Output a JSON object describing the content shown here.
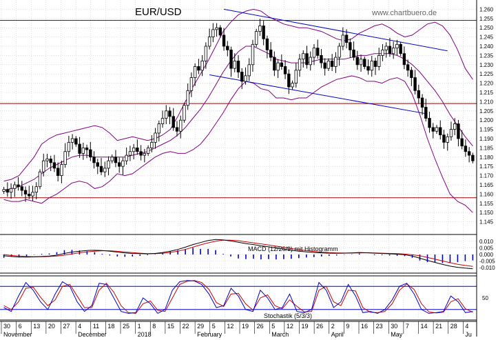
{
  "chart_data": {
    "type": "candlestick",
    "title": "EUR/USD",
    "watermark": "www.chartbuero.de",
    "colors": {
      "candle": "#000000",
      "bollinger": "#800080",
      "trend": "#0000cc",
      "resistance": "#990000",
      "macd": "#000000",
      "signal": "#cc0000",
      "histogram": "#0000cc",
      "stoch_k": "#0000cc",
      "stoch_d": "#cc0000",
      "grid": "#c0c0c0"
    },
    "price_axis": {
      "min": 1.14,
      "max": 1.265,
      "ticks": [
        "1.145",
        "1.150",
        "1.155",
        "1.160",
        "1.165",
        "1.170",
        "1.175",
        "1.180",
        "1.185",
        "1.190",
        "1.195",
        "1.200",
        "1.205",
        "1.210",
        "1.215",
        "1.220",
        "1.225",
        "1.230",
        "1.235",
        "1.240",
        "1.245",
        "1.250",
        "1.255",
        "1.260"
      ]
    },
    "horizontal_lines": [
      1.254,
      1.209,
      1.158
    ],
    "trend_channel": [
      {
        "from": {
          "i": 61,
          "v": 1.26
        },
        "to": {
          "i": 123,
          "v": 1.2375
        }
      },
      {
        "from": {
          "i": 57,
          "v": 1.2245
        },
        "to": {
          "i": 117,
          "v": 1.2035
        }
      }
    ],
    "start_index": 0,
    "ohlc": {
      "close": [
        1.1625,
        1.161,
        1.163,
        1.165,
        1.164,
        1.162,
        1.16,
        1.159,
        1.161,
        1.164,
        1.172,
        1.178,
        1.179,
        1.177,
        1.174,
        1.17,
        1.176,
        1.183,
        1.188,
        1.19,
        1.187,
        1.182,
        1.185,
        1.184,
        1.18,
        1.177,
        1.175,
        1.172,
        1.174,
        1.178,
        1.18,
        1.177,
        1.175,
        1.178,
        1.181,
        1.183,
        1.185,
        1.183,
        1.181,
        1.182,
        1.185,
        1.188,
        1.193,
        1.198,
        1.201,
        1.205,
        1.202,
        1.196,
        1.194,
        1.2,
        1.208,
        1.216,
        1.223,
        1.229,
        1.227,
        1.232,
        1.24,
        1.245,
        1.249,
        1.25,
        1.246,
        1.24,
        1.238,
        1.228,
        1.232,
        1.226,
        1.221,
        1.224,
        1.23,
        1.241,
        1.248,
        1.251,
        1.244,
        1.238,
        1.234,
        1.227,
        1.231,
        1.229,
        1.225,
        1.218,
        1.22,
        1.227,
        1.233,
        1.236,
        1.23,
        1.234,
        1.239,
        1.235,
        1.231,
        1.228,
        1.232,
        1.229,
        1.234,
        1.24,
        1.246,
        1.242,
        1.238,
        1.234,
        1.23,
        1.233,
        1.229,
        1.227,
        1.232,
        1.229,
        1.235,
        1.238,
        1.24,
        1.236,
        1.239,
        1.241,
        1.236,
        1.23,
        1.227,
        1.223,
        1.216,
        1.212,
        1.207,
        1.201,
        1.196,
        1.194,
        1.196,
        1.192,
        1.188,
        1.191,
        1.195,
        1.198,
        1.19,
        1.186,
        1.183,
        1.181,
        1.178
      ],
      "high_offset": 0.0035,
      "low_offset": 0.0035
    },
    "bollinger": {
      "upper": [
        1.167,
        1.168,
        1.17,
        1.175,
        1.18,
        1.187,
        1.19,
        1.192,
        1.193,
        1.194,
        1.195,
        1.196,
        1.197,
        1.196,
        1.193,
        1.189,
        1.19,
        1.191,
        1.19,
        1.189,
        1.19,
        1.192,
        1.195,
        1.202,
        1.21,
        1.218,
        1.225,
        1.232,
        1.24,
        1.248,
        1.253,
        1.257,
        1.259,
        1.26,
        1.259,
        1.256,
        1.254,
        1.252,
        1.251,
        1.25,
        1.25,
        1.249,
        1.248,
        1.246,
        1.244,
        1.243,
        1.244,
        1.247,
        1.249,
        1.251,
        1.252,
        1.25,
        1.247,
        1.245,
        1.246,
        1.249,
        1.252,
        1.253,
        1.251,
        1.246,
        1.238,
        1.228,
        1.222
      ],
      "middle": [
        1.162,
        1.163,
        1.164,
        1.166,
        1.168,
        1.171,
        1.174,
        1.176,
        1.178,
        1.18,
        1.181,
        1.181,
        1.18,
        1.18,
        1.18,
        1.18,
        1.18,
        1.181,
        1.182,
        1.183,
        1.185,
        1.187,
        1.189,
        1.192,
        1.196,
        1.201,
        1.206,
        1.212,
        1.219,
        1.226,
        1.232,
        1.237,
        1.24,
        1.24,
        1.238,
        1.236,
        1.233,
        1.232,
        1.231,
        1.231,
        1.231,
        1.232,
        1.233,
        1.233,
        1.233,
        1.233,
        1.234,
        1.235,
        1.235,
        1.236,
        1.236,
        1.236,
        1.235,
        1.233,
        1.23,
        1.226,
        1.221,
        1.216,
        1.21,
        1.203,
        1.197,
        1.191,
        1.186
      ],
      "lower": [
        1.157,
        1.156,
        1.156,
        1.157,
        1.156,
        1.155,
        1.158,
        1.16,
        1.163,
        1.166,
        1.167,
        1.166,
        1.163,
        1.164,
        1.167,
        1.171,
        1.17,
        1.171,
        1.174,
        1.177,
        1.18,
        1.182,
        1.183,
        1.182,
        1.182,
        1.184,
        1.187,
        1.192,
        1.198,
        1.204,
        1.211,
        1.217,
        1.221,
        1.22,
        1.217,
        1.216,
        1.212,
        1.212,
        1.211,
        1.212,
        1.212,
        1.215,
        1.218,
        1.22,
        1.222,
        1.223,
        1.224,
        1.223,
        1.221,
        1.221,
        1.22,
        1.222,
        1.223,
        1.221,
        1.214,
        1.203,
        1.19,
        1.179,
        1.169,
        1.16,
        1.156,
        1.154,
        1.15
      ]
    },
    "macd": {
      "label": "MACD (12/26/9) mit Histogramm",
      "ticks": [
        "0.010",
        "0.005",
        "0.000",
        "-0.005",
        "-0.010"
      ],
      "range": [
        -0.0125,
        0.0125
      ],
      "macd": [
        -0.001,
        -0.0015,
        -0.002,
        -0.002,
        -0.0018,
        -0.0015,
        -0.0012,
        -0.0005,
        0.0008,
        0.0018,
        0.0025,
        0.003,
        0.0032,
        0.003,
        0.0025,
        0.0018,
        0.0012,
        0.0008,
        0.0006,
        0.0005,
        0.0008,
        0.0015,
        0.0025,
        0.0038,
        0.0055,
        0.0075,
        0.009,
        0.0105,
        0.0113,
        0.011,
        0.0102,
        0.0092,
        0.0082,
        0.0075,
        0.0065,
        0.0058,
        0.0048,
        0.004,
        0.0032,
        0.0025,
        0.002,
        0.0015,
        0.0012,
        0.001,
        0.0009,
        0.001,
        0.0012,
        0.0015,
        0.0013,
        0.001,
        0.0008,
        0.0005,
        0.0002,
        -0.0002,
        -0.0012,
        -0.0028,
        -0.0045,
        -0.006,
        -0.0075,
        -0.0088,
        -0.0097,
        -0.0103,
        -0.0108
      ],
      "signal": [
        0.0,
        -0.0008,
        -0.0012,
        -0.0015,
        -0.0017,
        -0.0017,
        -0.0015,
        -0.0012,
        -0.0005,
        0.0004,
        0.0013,
        0.002,
        0.0025,
        0.0028,
        0.0028,
        0.0024,
        0.0019,
        0.0014,
        0.001,
        0.0007,
        0.0007,
        0.0009,
        0.0015,
        0.0025,
        0.0038,
        0.0055,
        0.0073,
        0.0088,
        0.01,
        0.0108,
        0.0108,
        0.0104,
        0.0096,
        0.0088,
        0.008,
        0.0072,
        0.0063,
        0.0054,
        0.0045,
        0.0036,
        0.0029,
        0.0023,
        0.0018,
        0.0014,
        0.0012,
        0.0011,
        0.0011,
        0.0012,
        0.0013,
        0.0012,
        0.001,
        0.0008,
        0.0006,
        0.0003,
        -0.0002,
        -0.001,
        -0.0022,
        -0.0035,
        -0.0049,
        -0.0062,
        -0.0074,
        -0.0083,
        -0.009
      ]
    },
    "stochastic": {
      "label": "Stochastik (5/3/3)",
      "ticks": [
        "50"
      ],
      "levels": [
        80,
        20
      ],
      "k": [
        25,
        15,
        55,
        90,
        70,
        40,
        20,
        60,
        92,
        80,
        40,
        15,
        30,
        88,
        85,
        50,
        15,
        10,
        12,
        50,
        35,
        10,
        20,
        70,
        92,
        95,
        94,
        85,
        60,
        25,
        30,
        75,
        55,
        20,
        15,
        70,
        50,
        20,
        25,
        60,
        15,
        12,
        20,
        90,
        70,
        25,
        40,
        85,
        55,
        12,
        15,
        10,
        20,
        45,
        80,
        88,
        60,
        20,
        10,
        12,
        15,
        55,
        40,
        12,
        15
      ],
      "d": [
        30,
        20,
        40,
        75,
        78,
        52,
        30,
        45,
        80,
        85,
        55,
        25,
        25,
        70,
        88,
        65,
        30,
        12,
        10,
        35,
        42,
        18,
        15,
        50,
        85,
        93,
        95,
        90,
        72,
        38,
        28,
        60,
        62,
        35,
        18,
        50,
        58,
        30,
        22,
        45,
        28,
        14,
        15,
        70,
        80,
        40,
        30,
        70,
        68,
        25,
        13,
        12,
        15,
        35,
        70,
        86,
        72,
        35,
        14,
        11,
        13,
        40,
        48,
        22,
        13
      ]
    },
    "x_axis": {
      "days": [
        "30",
        "6",
        "13",
        "20",
        "27",
        "4",
        "11",
        "18",
        "25",
        "1",
        "8",
        "15",
        "22",
        "29",
        "5",
        "12",
        "19",
        "26",
        "5",
        "12",
        "19",
        "26",
        "2",
        "9",
        "16",
        "23",
        "30",
        "7",
        "14",
        "21",
        "28",
        "4"
      ],
      "months": [
        "November",
        "December",
        "2018",
        "February",
        "March",
        "April",
        "May",
        "Ju"
      ]
    }
  }
}
